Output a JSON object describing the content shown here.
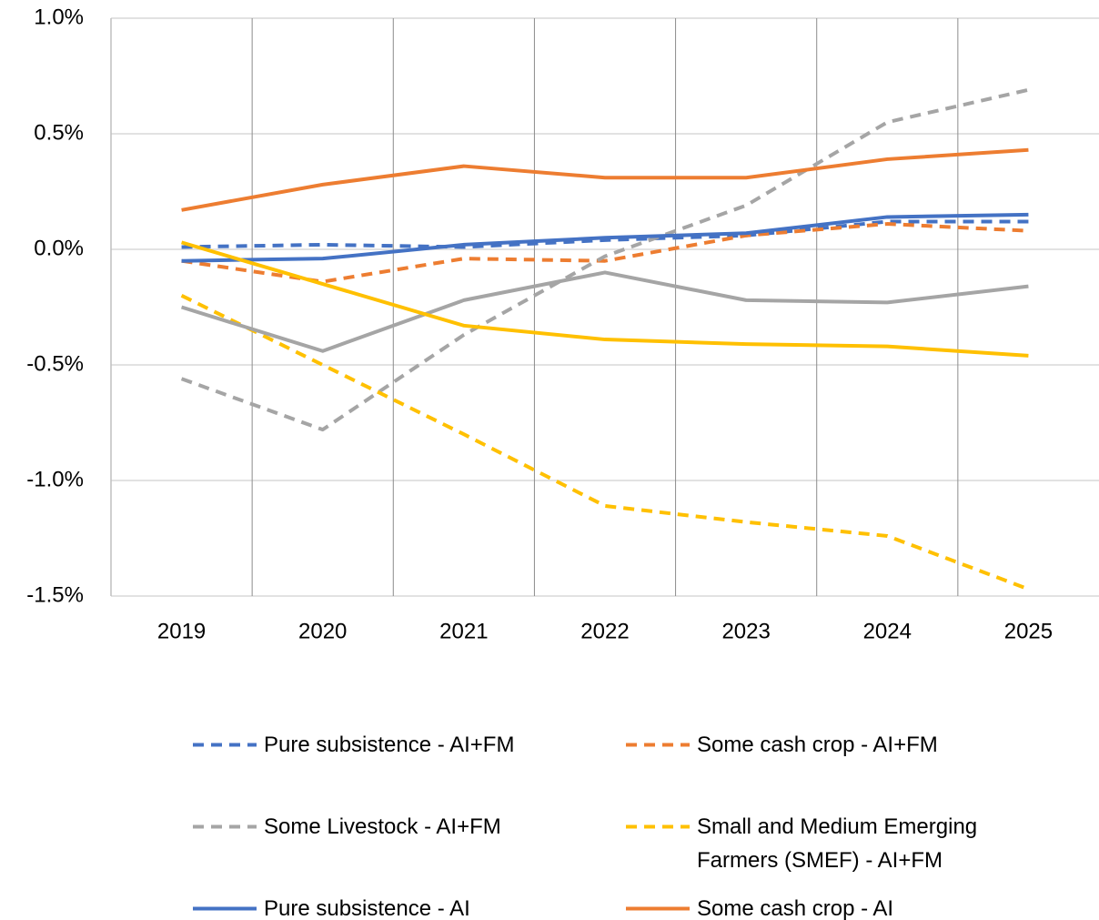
{
  "chart_data": {
    "type": "line",
    "categories": [
      "2019",
      "2020",
      "2021",
      "2022",
      "2023",
      "2024",
      "2025"
    ],
    "ylim": [
      -1.5,
      1.0
    ],
    "yticks": [
      {
        "value": -1.5,
        "label": "-1.5%"
      },
      {
        "value": -1.0,
        "label": "-1.0%"
      },
      {
        "value": -0.5,
        "label": "-0.5%"
      },
      {
        "value": 0.0,
        "label": "0.0%"
      },
      {
        "value": 0.5,
        "label": "0.5%"
      },
      {
        "value": 1.0,
        "label": "1.0%"
      }
    ],
    "grid": true,
    "series": [
      {
        "name": "Pure subsistence - AI+FM",
        "color": "#4472c4",
        "style": "dashed",
        "values": [
          0.01,
          0.02,
          0.01,
          0.04,
          0.06,
          0.12,
          0.12
        ]
      },
      {
        "name": "Some cash crop - AI+FM",
        "color": "#ed7d31",
        "style": "dashed",
        "values": [
          -0.05,
          -0.14,
          -0.04,
          -0.05,
          0.06,
          0.11,
          0.08
        ]
      },
      {
        "name": "Some Livestock - AI+FM",
        "color": "#a5a5a5",
        "style": "dashed",
        "values": [
          -0.56,
          -0.78,
          -0.37,
          -0.03,
          0.19,
          0.55,
          0.69
        ]
      },
      {
        "name": "Small and Medium Emerging Farmers (SMEF) - AI+FM",
        "color": "#ffc000",
        "style": "dashed",
        "values": [
          -0.2,
          -0.5,
          -0.8,
          -1.11,
          -1.18,
          -1.24,
          -1.47
        ]
      },
      {
        "name": "Pure subsistence - AI",
        "color": "#4472c4",
        "style": "solid",
        "values": [
          -0.05,
          -0.04,
          0.02,
          0.05,
          0.07,
          0.14,
          0.15
        ]
      },
      {
        "name": "Some cash crop - AI",
        "color": "#ed7d31",
        "style": "solid",
        "values": [
          0.17,
          0.28,
          0.36,
          0.31,
          0.31,
          0.39,
          0.43
        ]
      },
      {
        "color": "#a5a5a5",
        "style": "solid",
        "values": [
          -0.25,
          -0.44,
          -0.22,
          -0.1,
          -0.22,
          -0.23,
          -0.16
        ]
      },
      {
        "color": "#ffc000",
        "style": "solid",
        "values": [
          0.03,
          -0.15,
          -0.33,
          -0.39,
          -0.41,
          -0.42,
          -0.46
        ]
      }
    ]
  }
}
